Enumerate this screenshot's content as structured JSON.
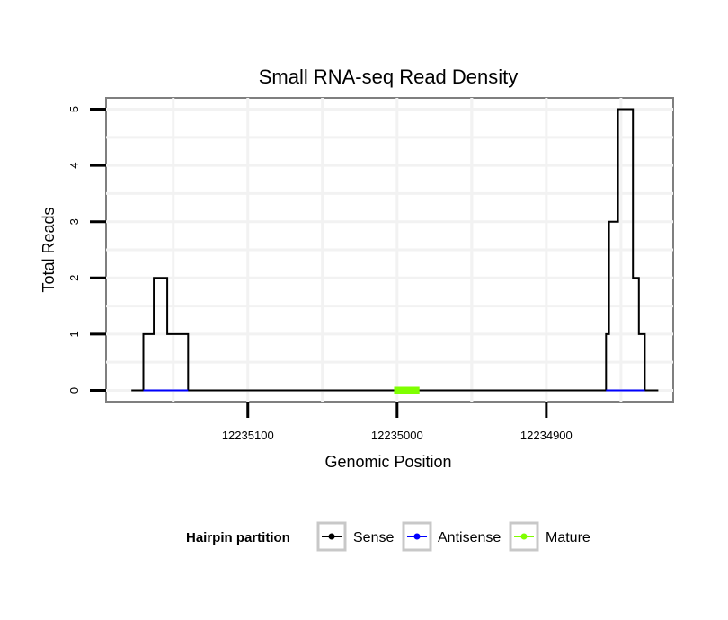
{
  "chart_data": {
    "type": "line",
    "title": "Small RNA-seq Read Density",
    "xlabel": "Genomic Position",
    "ylabel": "Total Reads",
    "x_reversed": true,
    "xlim": [
      12235195,
      12234815
    ],
    "ylim": [
      -0.2,
      5.2
    ],
    "x_ticks": [
      12235100,
      12235000,
      12234900
    ],
    "x_tick_labels": [
      "12235100",
      "12235000",
      "12234900"
    ],
    "y_ticks": [
      0,
      1,
      2,
      3,
      4,
      5
    ],
    "y_tick_labels": [
      "0",
      "1",
      "2",
      "3",
      "4",
      "5"
    ],
    "grid": true,
    "legend": {
      "title": "Hairpin partition",
      "position": "bottom",
      "entries": [
        {
          "label": "Sense",
          "color": "#000000"
        },
        {
          "label": "Antisense",
          "color": "#0000ff"
        },
        {
          "label": "Mature",
          "color": "#7fff00"
        }
      ]
    },
    "series": [
      {
        "name": "Sense",
        "color": "#000000",
        "points": [
          [
            12235178,
            0
          ],
          [
            12235170,
            0
          ],
          [
            12235170,
            1
          ],
          [
            12235163,
            1
          ],
          [
            12235163,
            2
          ],
          [
            12235154,
            2
          ],
          [
            12235154,
            1
          ],
          [
            12235140,
            1
          ],
          [
            12235140,
            0
          ],
          [
            12234860,
            0
          ],
          [
            12234860,
            1
          ],
          [
            12234858,
            1
          ],
          [
            12234858,
            3
          ],
          [
            12234852,
            3
          ],
          [
            12234852,
            5
          ],
          [
            12234842,
            5
          ],
          [
            12234842,
            2
          ],
          [
            12234838,
            2
          ],
          [
            12234838,
            1
          ],
          [
            12234834,
            1
          ],
          [
            12234834,
            0
          ],
          [
            12234825,
            0
          ]
        ]
      },
      {
        "name": "Antisense",
        "color": "#0000ff",
        "segments": [
          [
            [
              12235170,
              0
            ],
            [
              12235140,
              0
            ]
          ],
          [
            [
              12234860,
              0
            ],
            [
              12234834,
              0
            ]
          ]
        ]
      },
      {
        "name": "Mature",
        "color": "#7fff00",
        "segments": [
          [
            [
              12235002,
              0
            ],
            [
              12234985,
              0
            ]
          ]
        ]
      }
    ]
  }
}
